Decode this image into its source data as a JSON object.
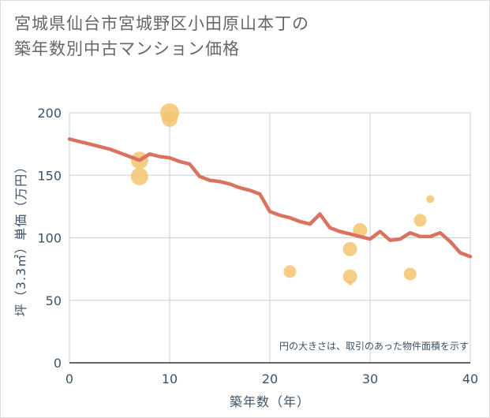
{
  "title_line1": "宮城県仙台市宮城野区小田原山本丁の",
  "title_line2": "築年数別中古マンション価格",
  "colors": {
    "line": "#d9735f",
    "bubble": "#f5c470",
    "grid": "#c8d2dc",
    "plot_bg": "#ffffff",
    "axis_text": "#3d5266"
  },
  "chart_data": {
    "type": "scatter",
    "title": "宮城県仙台市宮城野区小田原山本丁の築年数別中古マンション価格",
    "xlabel": "築年数（年）",
    "ylabel": "坪（3.3㎡）単価（万円）",
    "xlim": [
      0,
      40
    ],
    "ylim": [
      0,
      200
    ],
    "xticks": [
      0,
      10,
      20,
      30,
      40
    ],
    "yticks": [
      0,
      50,
      100,
      150,
      200
    ],
    "grid": true,
    "annotation": "円の大きさは、取引のあった物件面積を示す",
    "bubbles": [
      {
        "x": 7,
        "y": 162,
        "size": 11
      },
      {
        "x": 7,
        "y": 149,
        "size": 11
      },
      {
        "x": 10,
        "y": 200,
        "size": 12
      },
      {
        "x": 10,
        "y": 195,
        "size": 10
      },
      {
        "x": 22,
        "y": 73,
        "size": 8
      },
      {
        "x": 28,
        "y": 91,
        "size": 9
      },
      {
        "x": 28,
        "y": 69,
        "size": 9
      },
      {
        "x": 28,
        "y": 64,
        "size": 3
      },
      {
        "x": 29,
        "y": 106,
        "size": 9
      },
      {
        "x": 34,
        "y": 71,
        "size": 8
      },
      {
        "x": 35,
        "y": 114,
        "size": 8
      },
      {
        "x": 36,
        "y": 131,
        "size": 5
      }
    ],
    "trend_line": {
      "x": [
        0,
        1,
        2,
        3,
        4,
        5,
        6,
        7,
        8,
        9,
        10,
        11,
        12,
        13,
        14,
        15,
        16,
        17,
        18,
        19,
        20,
        21,
        22,
        23,
        24,
        25,
        26,
        27,
        28,
        29,
        30,
        31,
        32,
        33,
        34,
        35,
        36,
        37,
        38,
        39,
        40
      ],
      "y": [
        179,
        177,
        175,
        173,
        171,
        168,
        165,
        162,
        167,
        165,
        164,
        161,
        159,
        149,
        146,
        145,
        143,
        140,
        138,
        135,
        121,
        118,
        116,
        113,
        111,
        119,
        108,
        105,
        103,
        101,
        99,
        105,
        98,
        99,
        104,
        101,
        101,
        104,
        97,
        88,
        85
      ]
    }
  }
}
